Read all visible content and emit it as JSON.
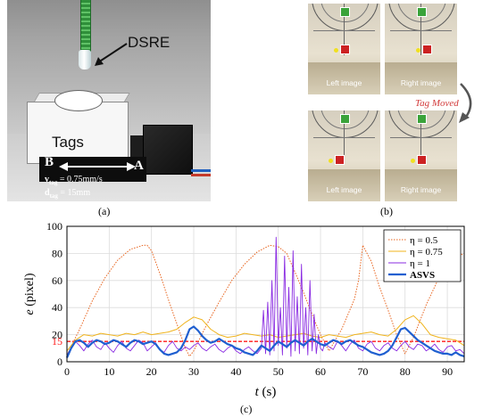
{
  "panel_a": {
    "dsre_label": "DSRE",
    "tags_label": "Tags",
    "label_b": "B",
    "label_a": "A",
    "speed_line": "v",
    "speed_sub": "tag",
    "speed_value": " = 0.75mm/s",
    "dist_line": "d",
    "dist_sub": "tag",
    "dist_value": " = 15mm",
    "caption": "(a)"
  },
  "panel_b": {
    "left_caption": "Left image",
    "right_caption": "Right image",
    "left_caption_2": "Left image",
    "right_caption_2": "Right image",
    "tag_moved": "Tag Moved",
    "caption": "(b)",
    "colors": {
      "green_tag": "#3aa33a",
      "red_tag": "#cc2222",
      "annotation": "#d23a3a"
    }
  },
  "panel_c": {
    "caption": "(c)"
  },
  "chart_data": {
    "type": "line",
    "xlabel_italic": "t",
    "xlabel_unit": "(s)",
    "ylabel_italic": "e",
    "ylabel_unit": "(pixel)",
    "xlim": [
      0,
      94
    ],
    "ylim": [
      0,
      100
    ],
    "xticks": [
      0,
      10,
      20,
      30,
      40,
      50,
      60,
      70,
      80,
      90
    ],
    "yticks": [
      0,
      20,
      40,
      60,
      80,
      100
    ],
    "threshold": {
      "y": 15,
      "label": "15",
      "color": "#ff1a1a"
    },
    "grid": true,
    "legend_position": "top-right",
    "series": [
      {
        "name": "η = 0.5",
        "color": "#e8641e",
        "style": "dotted",
        "width": 1,
        "x": [
          0,
          3,
          6,
          9,
          12,
          15,
          18,
          19,
          20,
          22,
          24,
          26,
          28,
          29,
          30,
          33,
          36,
          39,
          42,
          45,
          48,
          50,
          52,
          54,
          56,
          58,
          60,
          62,
          65,
          68,
          69,
          70,
          72,
          74,
          76,
          78,
          80,
          82,
          85,
          88,
          91,
          94
        ],
        "y": [
          5,
          24,
          45,
          62,
          75,
          83,
          86,
          86,
          82,
          65,
          46,
          28,
          10,
          4,
          8,
          27,
          44,
          60,
          72,
          81,
          86,
          85,
          80,
          66,
          51,
          35,
          20,
          8,
          24,
          46,
          60,
          86,
          74,
          55,
          38,
          20,
          6,
          18,
          42,
          62,
          76,
          80
        ]
      },
      {
        "name": "η = 0.75",
        "color": "#f0b41e",
        "style": "solid",
        "width": 1,
        "x": [
          0,
          2,
          4,
          6,
          8,
          10,
          12,
          14,
          16,
          18,
          20,
          22,
          24,
          26,
          28,
          30,
          32,
          34,
          36,
          38,
          40,
          42,
          44,
          46,
          48,
          50,
          52,
          54,
          56,
          58,
          60,
          62,
          64,
          66,
          68,
          70,
          72,
          74,
          76,
          78,
          80,
          82,
          84,
          86,
          88,
          90,
          92,
          94
        ],
        "y": [
          8,
          16,
          20,
          19,
          21,
          20,
          19,
          21,
          20,
          22,
          20,
          21,
          22,
          24,
          29,
          33,
          31,
          24,
          20,
          18,
          19,
          21,
          20,
          19,
          20,
          18,
          19,
          20,
          21,
          19,
          18,
          20,
          19,
          18,
          20,
          21,
          22,
          20,
          19,
          24,
          31,
          34,
          28,
          20,
          18,
          17,
          16,
          12
        ]
      },
      {
        "name": "η = 1",
        "color": "#8a2be2",
        "style": "solid",
        "width": 0.9,
        "x": [
          0,
          1,
          2,
          3,
          4,
          5,
          6,
          7,
          8,
          9,
          10,
          11,
          12,
          13,
          14,
          15,
          16,
          17,
          18,
          19,
          20,
          21,
          22,
          23,
          24,
          25,
          26,
          27,
          28,
          29,
          30,
          31,
          32,
          33,
          34,
          35,
          36,
          37,
          38,
          39,
          40,
          41,
          42,
          43,
          44,
          45,
          46,
          46.5,
          47,
          47.5,
          48,
          48.5,
          49,
          49.5,
          50,
          50.5,
          51,
          51.5,
          52,
          52.5,
          53,
          53.5,
          54,
          54.5,
          55,
          55.5,
          56,
          56.5,
          57,
          57.5,
          58,
          58.5,
          59,
          59.5,
          60,
          60.5,
          61,
          62,
          63,
          64,
          65,
          66,
          67,
          68,
          69,
          70,
          71,
          72,
          73,
          74,
          75,
          76,
          77,
          78,
          79,
          80,
          81,
          82,
          83,
          84,
          85,
          86,
          87,
          88,
          89,
          90,
          91,
          92,
          93,
          94
        ],
        "y": [
          5,
          10,
          15,
          12,
          8,
          13,
          16,
          11,
          9,
          14,
          10,
          7,
          12,
          15,
          10,
          8,
          12,
          16,
          14,
          8,
          11,
          14,
          9,
          7,
          12,
          15,
          10,
          8,
          11,
          9,
          12,
          14,
          10,
          8,
          11,
          13,
          9,
          7,
          10,
          12,
          8,
          6,
          9,
          11,
          8,
          6,
          10,
          38,
          6,
          44,
          5,
          60,
          8,
          92,
          12,
          40,
          5,
          78,
          10,
          55,
          4,
          82,
          8,
          48,
          6,
          72,
          10,
          40,
          5,
          60,
          8,
          35,
          6,
          20,
          10,
          8,
          14,
          11,
          9,
          15,
          12,
          8,
          13,
          16,
          10,
          8,
          13,
          15,
          10,
          8,
          12,
          14,
          10,
          8,
          12,
          15,
          11,
          9,
          13,
          12,
          8,
          10,
          13,
          9,
          7,
          11,
          12,
          8,
          9,
          6
        ]
      },
      {
        "name": "ASVS",
        "color": "#1f5fd0",
        "style": "solid",
        "width": 2.2,
        "x": [
          0,
          1,
          2,
          3,
          4,
          5,
          6,
          7,
          8,
          9,
          10,
          11,
          12,
          13,
          14,
          15,
          16,
          17,
          18,
          19,
          20,
          21,
          22,
          23,
          24,
          25,
          26,
          27,
          28,
          29,
          30,
          31,
          32,
          33,
          34,
          35,
          36,
          37,
          38,
          39,
          40,
          41,
          42,
          43,
          44,
          45,
          46,
          47,
          48,
          49,
          50,
          51,
          52,
          53,
          54,
          55,
          56,
          57,
          58,
          59,
          60,
          61,
          62,
          63,
          64,
          65,
          66,
          67,
          68,
          69,
          70,
          71,
          72,
          73,
          74,
          75,
          76,
          77,
          78,
          79,
          80,
          81,
          82,
          83,
          84,
          85,
          86,
          87,
          88,
          89,
          90,
          91,
          92,
          93,
          94
        ],
        "y": [
          3,
          10,
          15,
          16,
          14,
          11,
          14,
          16,
          15,
          13,
          14,
          16,
          15,
          13,
          11,
          14,
          16,
          15,
          13,
          14,
          15,
          13,
          9,
          6,
          5,
          6,
          7,
          10,
          16,
          24,
          26,
          23,
          19,
          16,
          14,
          15,
          17,
          15,
          13,
          12,
          10,
          9,
          7,
          6,
          5,
          8,
          12,
          10,
          8,
          12,
          15,
          13,
          11,
          14,
          16,
          14,
          12,
          15,
          17,
          15,
          13,
          12,
          14,
          16,
          15,
          13,
          15,
          16,
          14,
          12,
          11,
          9,
          7,
          6,
          5,
          6,
          8,
          12,
          18,
          24,
          25,
          22,
          19,
          16,
          14,
          12,
          10,
          8,
          7,
          6,
          6,
          5,
          7,
          5,
          4
        ]
      }
    ]
  }
}
